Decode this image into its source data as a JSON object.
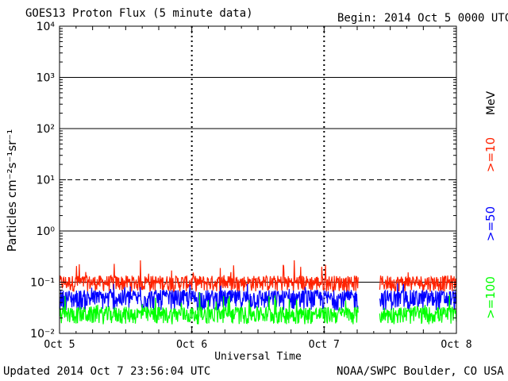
{
  "header": {
    "title": "GOES13 Proton Flux (5 minute data)",
    "begin": "Begin: 2014 Oct 5 0000 UTC"
  },
  "footer": {
    "updated": "Updated 2014 Oct  7 23:56:04 UTC",
    "credit": "NOAA/SWPC Boulder, CO USA"
  },
  "chart_data": {
    "type": "line",
    "title": "GOES13 Proton Flux (5 minute data)",
    "xlabel": "Universal Time",
    "ylabel": "Particles cm⁻²s⁻¹sr⁻¹",
    "y_scale": "log",
    "ylim": [
      0.01,
      10000
    ],
    "y_ticks": [
      "10⁻²",
      "10⁻¹",
      "10⁰",
      "10¹",
      "10²",
      "10³",
      "10⁴"
    ],
    "x_ticks": [
      "Oct 5",
      "Oct 6",
      "Oct 7",
      "Oct 8"
    ],
    "xlim_days": [
      0,
      3
    ],
    "data_gap_days": [
      2.26,
      2.42
    ],
    "threshold_lines": [
      {
        "value": 0.1,
        "style": "solid"
      },
      {
        "value": 1,
        "style": "solid"
      },
      {
        "value": 10,
        "style": "dashed"
      },
      {
        "value": 100,
        "style": "solid"
      },
      {
        "value": 1000,
        "style": "solid"
      }
    ],
    "energy_unit": "MeV",
    "series": [
      {
        "name": ">=10",
        "color": "#ff2200",
        "baseline": 0.09,
        "min": 0.065,
        "max": 0.3
      },
      {
        "name": ">=50",
        "color": "#0000ff",
        "baseline": 0.047,
        "min": 0.028,
        "max": 0.1
      },
      {
        "name": ">=100",
        "color": "#00ff00",
        "baseline": 0.022,
        "min": 0.015,
        "max": 0.07
      }
    ],
    "grid": false,
    "legend_position": "right-vertical"
  }
}
